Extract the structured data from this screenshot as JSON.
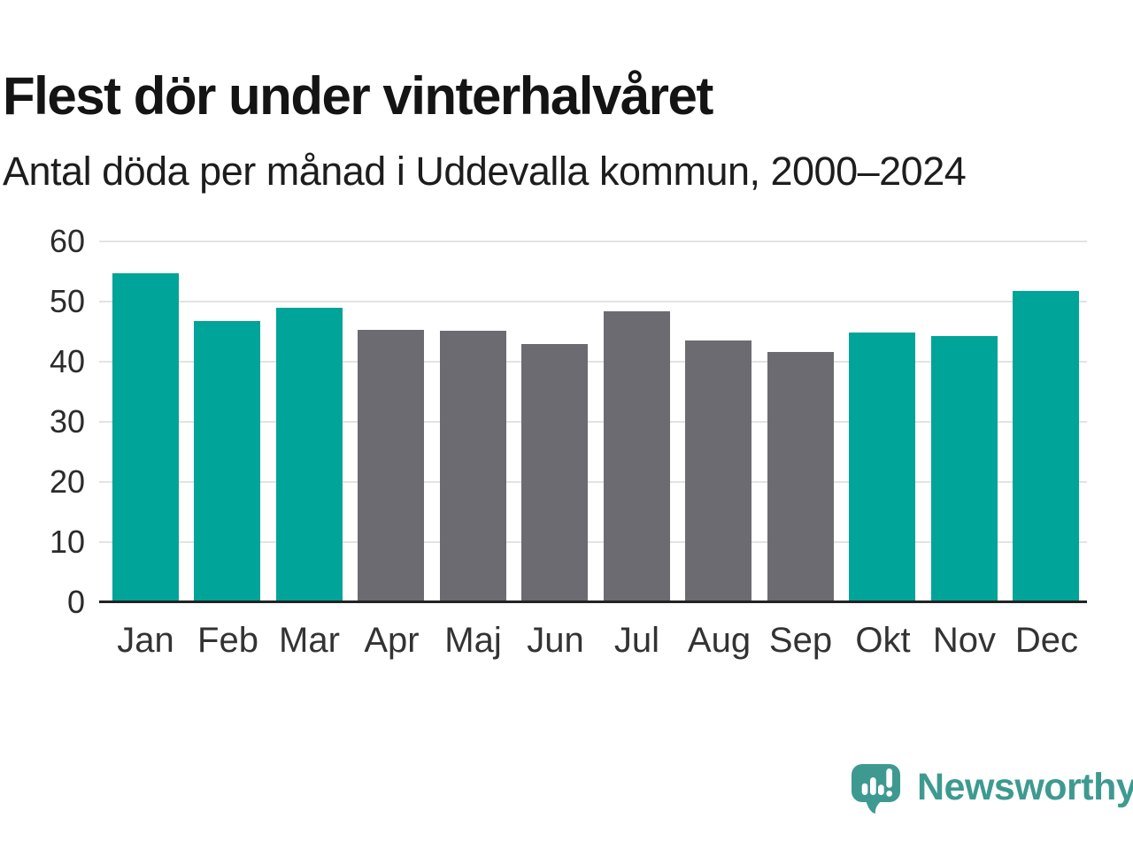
{
  "chart_data": {
    "type": "bar",
    "title": "Flest dör under vinterhalvåret",
    "subtitle": "Antal döda per månad i Uddevalla kommun, 2000–2024",
    "categories": [
      "Jan",
      "Feb",
      "Mar",
      "Apr",
      "Maj",
      "Jun",
      "Jul",
      "Aug",
      "Sep",
      "Okt",
      "Nov",
      "Dec"
    ],
    "values": [
      54.7,
      46.7,
      48.9,
      45.3,
      45.2,
      42.9,
      48.4,
      43.5,
      41.6,
      44.8,
      44.2,
      51.7
    ],
    "bar_roles": [
      "winter",
      "winter",
      "winter",
      "summer",
      "summer",
      "summer",
      "summer",
      "summer",
      "summer",
      "winter",
      "winter",
      "winter"
    ],
    "colors": {
      "winter": "#00a499",
      "summer": "#6c6b71"
    },
    "y_ticks": [
      0,
      10,
      20,
      30,
      40,
      50,
      60
    ],
    "ylim": [
      0,
      60
    ],
    "xlabel": "",
    "ylabel": "",
    "grid": true,
    "legend": "none"
  },
  "branding": {
    "logo_text": "Newsworthy",
    "logo_color": "#3e9a90",
    "logo_icon": "speech-bubble-bar-chart-icon"
  }
}
